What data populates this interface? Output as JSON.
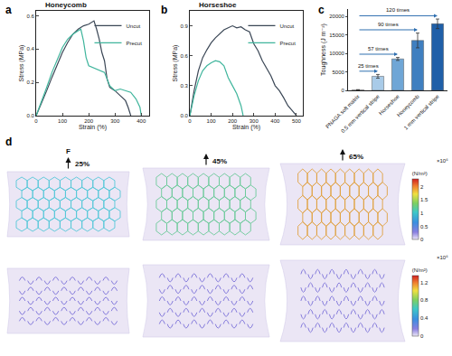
{
  "chart_data": [
    {
      "type": "line",
      "label": "a",
      "title": "Honeycomb",
      "x_label": "Strain (%)",
      "y_label": "Stress (MPa)",
      "xlim": [
        0,
        430
      ],
      "xticks": [
        0,
        100,
        200,
        300,
        400
      ],
      "ylim": [
        0,
        0.63
      ],
      "yticks": [
        {
          "value": 0,
          "label": "0.0"
        },
        0.2,
        0.4,
        0.6
      ],
      "legend": "top right",
      "series": [
        {
          "name": "Uncut",
          "color": "#3b4756",
          "x": [
            0,
            20,
            40,
            60,
            80,
            100,
            120,
            140,
            160,
            180,
            200,
            210,
            220,
            230,
            240,
            250,
            260,
            270,
            280,
            300,
            320,
            340,
            350,
            360
          ],
          "values": [
            0,
            0.07,
            0.15,
            0.23,
            0.31,
            0.38,
            0.44,
            0.49,
            0.52,
            0.54,
            0.55,
            0.56,
            0.57,
            0.52,
            0.46,
            0.38,
            0.33,
            0.22,
            0.17,
            0.15,
            0.12,
            0.09,
            0.05,
            0
          ]
        },
        {
          "name": "Precut",
          "color": "#3fb59c",
          "x": [
            0,
            20,
            40,
            60,
            80,
            100,
            120,
            140,
            160,
            170,
            180,
            190,
            200,
            230,
            260,
            280,
            300,
            320,
            340,
            360,
            380,
            395,
            400
          ],
          "values": [
            0,
            0.08,
            0.17,
            0.26,
            0.34,
            0.41,
            0.46,
            0.49,
            0.51,
            0.52,
            0.45,
            0.35,
            0.3,
            0.28,
            0.26,
            0.18,
            0.15,
            0.16,
            0.15,
            0.14,
            0.1,
            0.05,
            0
          ]
        }
      ]
    },
    {
      "type": "line",
      "label": "b",
      "title": "Horseshoe",
      "x_label": "Strain (%)",
      "y_label": "Stress (MPa)",
      "xlim": [
        0,
        530
      ],
      "xticks": [
        0,
        100,
        200,
        300,
        400,
        500
      ],
      "ylim": [
        0,
        1.05
      ],
      "yticks": [
        {
          "value": 0,
          "label": "0.0"
        },
        0.3,
        0.6,
        0.9
      ],
      "legend": "top right",
      "series": [
        {
          "name": "Uncut",
          "color": "#3b4756",
          "x": [
            0,
            20,
            40,
            60,
            80,
            100,
            120,
            140,
            160,
            180,
            200,
            220,
            240,
            260,
            280,
            300,
            320,
            340,
            360,
            380,
            400,
            420,
            440,
            460,
            480,
            500
          ],
          "values": [
            0,
            0.25,
            0.45,
            0.58,
            0.66,
            0.73,
            0.78,
            0.82,
            0.86,
            0.88,
            0.9,
            0.88,
            0.89,
            0.86,
            0.84,
            0.72,
            0.65,
            0.55,
            0.48,
            0.4,
            0.3,
            0.25,
            0.18,
            0.1,
            0.05,
            0
          ]
        },
        {
          "name": "Precut",
          "color": "#3fb59c",
          "x": [
            0,
            20,
            40,
            60,
            80,
            100,
            120,
            140,
            160,
            180,
            200,
            220,
            240,
            250
          ],
          "values": [
            0,
            0.2,
            0.35,
            0.45,
            0.5,
            0.53,
            0.55,
            0.54,
            0.5,
            0.38,
            0.3,
            0.22,
            0.1,
            0
          ]
        }
      ]
    },
    {
      "type": "bar",
      "label": "c",
      "y_label": "Toughness (J m⁻²)",
      "categories": [
        "PNAGA soft matrix",
        "0.5 mm vertical stripe",
        "Horseshoe",
        "Honeycomb",
        "1 mm vertical stripe"
      ],
      "values": [
        150,
        3800,
        8500,
        13500,
        18000
      ],
      "errors": [
        20,
        500,
        400,
        2000,
        1300
      ],
      "colors": [
        "#eaf2fb",
        "#a9cbe8",
        "#6fa6d6",
        "#3f7fc0",
        "#1f5fa8"
      ],
      "ylim": [
        0,
        22000
      ],
      "yticks": [
        0,
        5000,
        10000,
        15000,
        20000
      ],
      "annotations": [
        {
          "text": "25 times",
          "from": "PNAGA soft matrix",
          "to": "0.5 mm vertical stripe"
        },
        {
          "text": "57 times",
          "from": "PNAGA soft matrix",
          "to": "Horseshoe"
        },
        {
          "text": "90 times",
          "from": "PNAGA soft matrix",
          "to": "Honeycomb"
        },
        {
          "text": "120 times",
          "from": "PNAGA soft matrix",
          "to": "1 mm vertical stripe"
        }
      ]
    }
  ],
  "simulation": {
    "label": "d",
    "force_label": "F",
    "strains": [
      "25%",
      "45%",
      "65%"
    ],
    "rows": [
      {
        "pattern": "honeycomb",
        "colorbar": {
          "title": "(N/m²)",
          "multiplier": "×10⁶",
          "range": [
            0,
            2.3
          ],
          "ticks": [
            0,
            0.5,
            1,
            1.5,
            2
          ]
        }
      },
      {
        "pattern": "horseshoe",
        "colorbar": {
          "title": "(N/m²)",
          "multiplier": "×10⁶",
          "range": [
            0,
            1.35
          ],
          "ticks": [
            0,
            0.4,
            0.8,
            1.2
          ]
        }
      }
    ]
  }
}
